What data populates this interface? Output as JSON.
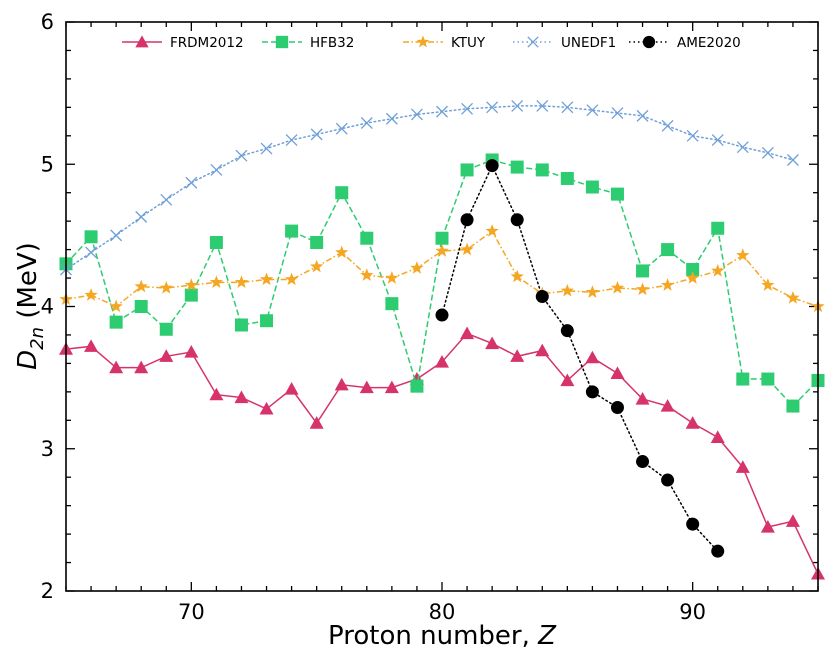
{
  "chart_data": {
    "type": "line",
    "title": "",
    "xlabel": "Proton number, ",
    "xlabel_var": "Z",
    "ylabel_main": "D",
    "ylabel_sub": "2n",
    "ylabel_unit": " (MeV)",
    "xlim": [
      65,
      95
    ],
    "ylim": [
      2,
      6
    ],
    "x_major_ticks": [
      70,
      80,
      90
    ],
    "x_tick_labels": [
      "70",
      "80",
      "90"
    ],
    "y_major_ticks": [
      2,
      3,
      4,
      5,
      6
    ],
    "y_tick_labels": [
      "2",
      "3",
      "4",
      "5",
      "6"
    ],
    "legend_position": "top",
    "series": [
      {
        "name": "FRDM2012",
        "color": "#d6336c",
        "marker": "triangle",
        "linestyle": "solid",
        "x": [
          65,
          66,
          67,
          68,
          69,
          70,
          71,
          72,
          73,
          74,
          75,
          76,
          77,
          78,
          79,
          80,
          81,
          82,
          83,
          84,
          85,
          86,
          87,
          88,
          89,
          90,
          91,
          92,
          93,
          94,
          95
        ],
        "y": [
          3.7,
          3.72,
          3.57,
          3.57,
          3.65,
          3.68,
          3.38,
          3.36,
          3.28,
          3.42,
          3.18,
          3.45,
          3.43,
          3.43,
          3.49,
          3.61,
          3.81,
          3.74,
          3.65,
          3.69,
          3.48,
          3.64,
          3.53,
          3.35,
          3.3,
          3.18,
          3.08,
          2.87,
          2.45,
          2.49,
          2.12
        ]
      },
      {
        "name": "HFB32",
        "color": "#2ecc71",
        "marker": "square",
        "linestyle": "dashed",
        "x": [
          65,
          66,
          67,
          68,
          69,
          70,
          71,
          72,
          73,
          74,
          75,
          76,
          77,
          78,
          79,
          80,
          81,
          82,
          83,
          84,
          85,
          86,
          87,
          88,
          89,
          90,
          91,
          92,
          93,
          94,
          95
        ],
        "y": [
          4.3,
          4.49,
          3.89,
          4.0,
          3.84,
          4.08,
          4.45,
          3.87,
          3.9,
          4.53,
          4.45,
          4.8,
          4.48,
          4.02,
          3.44,
          4.48,
          4.96,
          5.03,
          4.98,
          4.96,
          4.9,
          4.84,
          4.79,
          4.25,
          4.4,
          4.26,
          4.55,
          3.49,
          3.49,
          3.3,
          3.48
        ]
      },
      {
        "name": "KTUY",
        "color": "#f5a623",
        "marker": "star",
        "linestyle": "dashdot",
        "x": [
          65,
          66,
          67,
          68,
          69,
          70,
          71,
          72,
          73,
          74,
          75,
          76,
          77,
          78,
          79,
          80,
          81,
          82,
          83,
          84,
          85,
          86,
          87,
          88,
          89,
          90,
          91,
          92,
          93,
          94,
          95
        ],
        "y": [
          4.05,
          4.08,
          4.0,
          4.14,
          4.13,
          4.15,
          4.17,
          4.17,
          4.19,
          4.19,
          4.28,
          4.38,
          4.22,
          4.2,
          4.27,
          4.39,
          4.4,
          4.53,
          4.21,
          4.09,
          4.11,
          4.1,
          4.13,
          4.12,
          4.15,
          4.2,
          4.25,
          4.36,
          4.15,
          4.06,
          4.0
        ]
      },
      {
        "name": "UNEDF1",
        "color": "#6f9fd8",
        "marker": "x",
        "linestyle": "dotted",
        "x": [
          65,
          66,
          67,
          68,
          69,
          70,
          71,
          72,
          73,
          74,
          75,
          76,
          77,
          78,
          79,
          80,
          81,
          82,
          83,
          84,
          85,
          86,
          87,
          88,
          89,
          90,
          91,
          92,
          93,
          94
        ],
        "y": [
          4.26,
          4.38,
          4.5,
          4.63,
          4.75,
          4.87,
          4.96,
          5.06,
          5.11,
          5.17,
          5.21,
          5.25,
          5.29,
          5.32,
          5.35,
          5.37,
          5.39,
          5.4,
          5.41,
          5.41,
          5.4,
          5.38,
          5.36,
          5.34,
          5.27,
          5.2,
          5.17,
          5.12,
          5.08,
          5.03
        ]
      },
      {
        "name": "AME2020",
        "color": "#000000",
        "marker": "circle",
        "linestyle": "dotted",
        "x": [
          80,
          81,
          82,
          83,
          84,
          85,
          86,
          87,
          88,
          89,
          90,
          91
        ],
        "y": [
          3.94,
          4.61,
          4.99,
          4.61,
          4.07,
          3.83,
          3.4,
          3.29,
          2.91,
          2.78,
          2.47,
          2.28
        ]
      }
    ]
  }
}
